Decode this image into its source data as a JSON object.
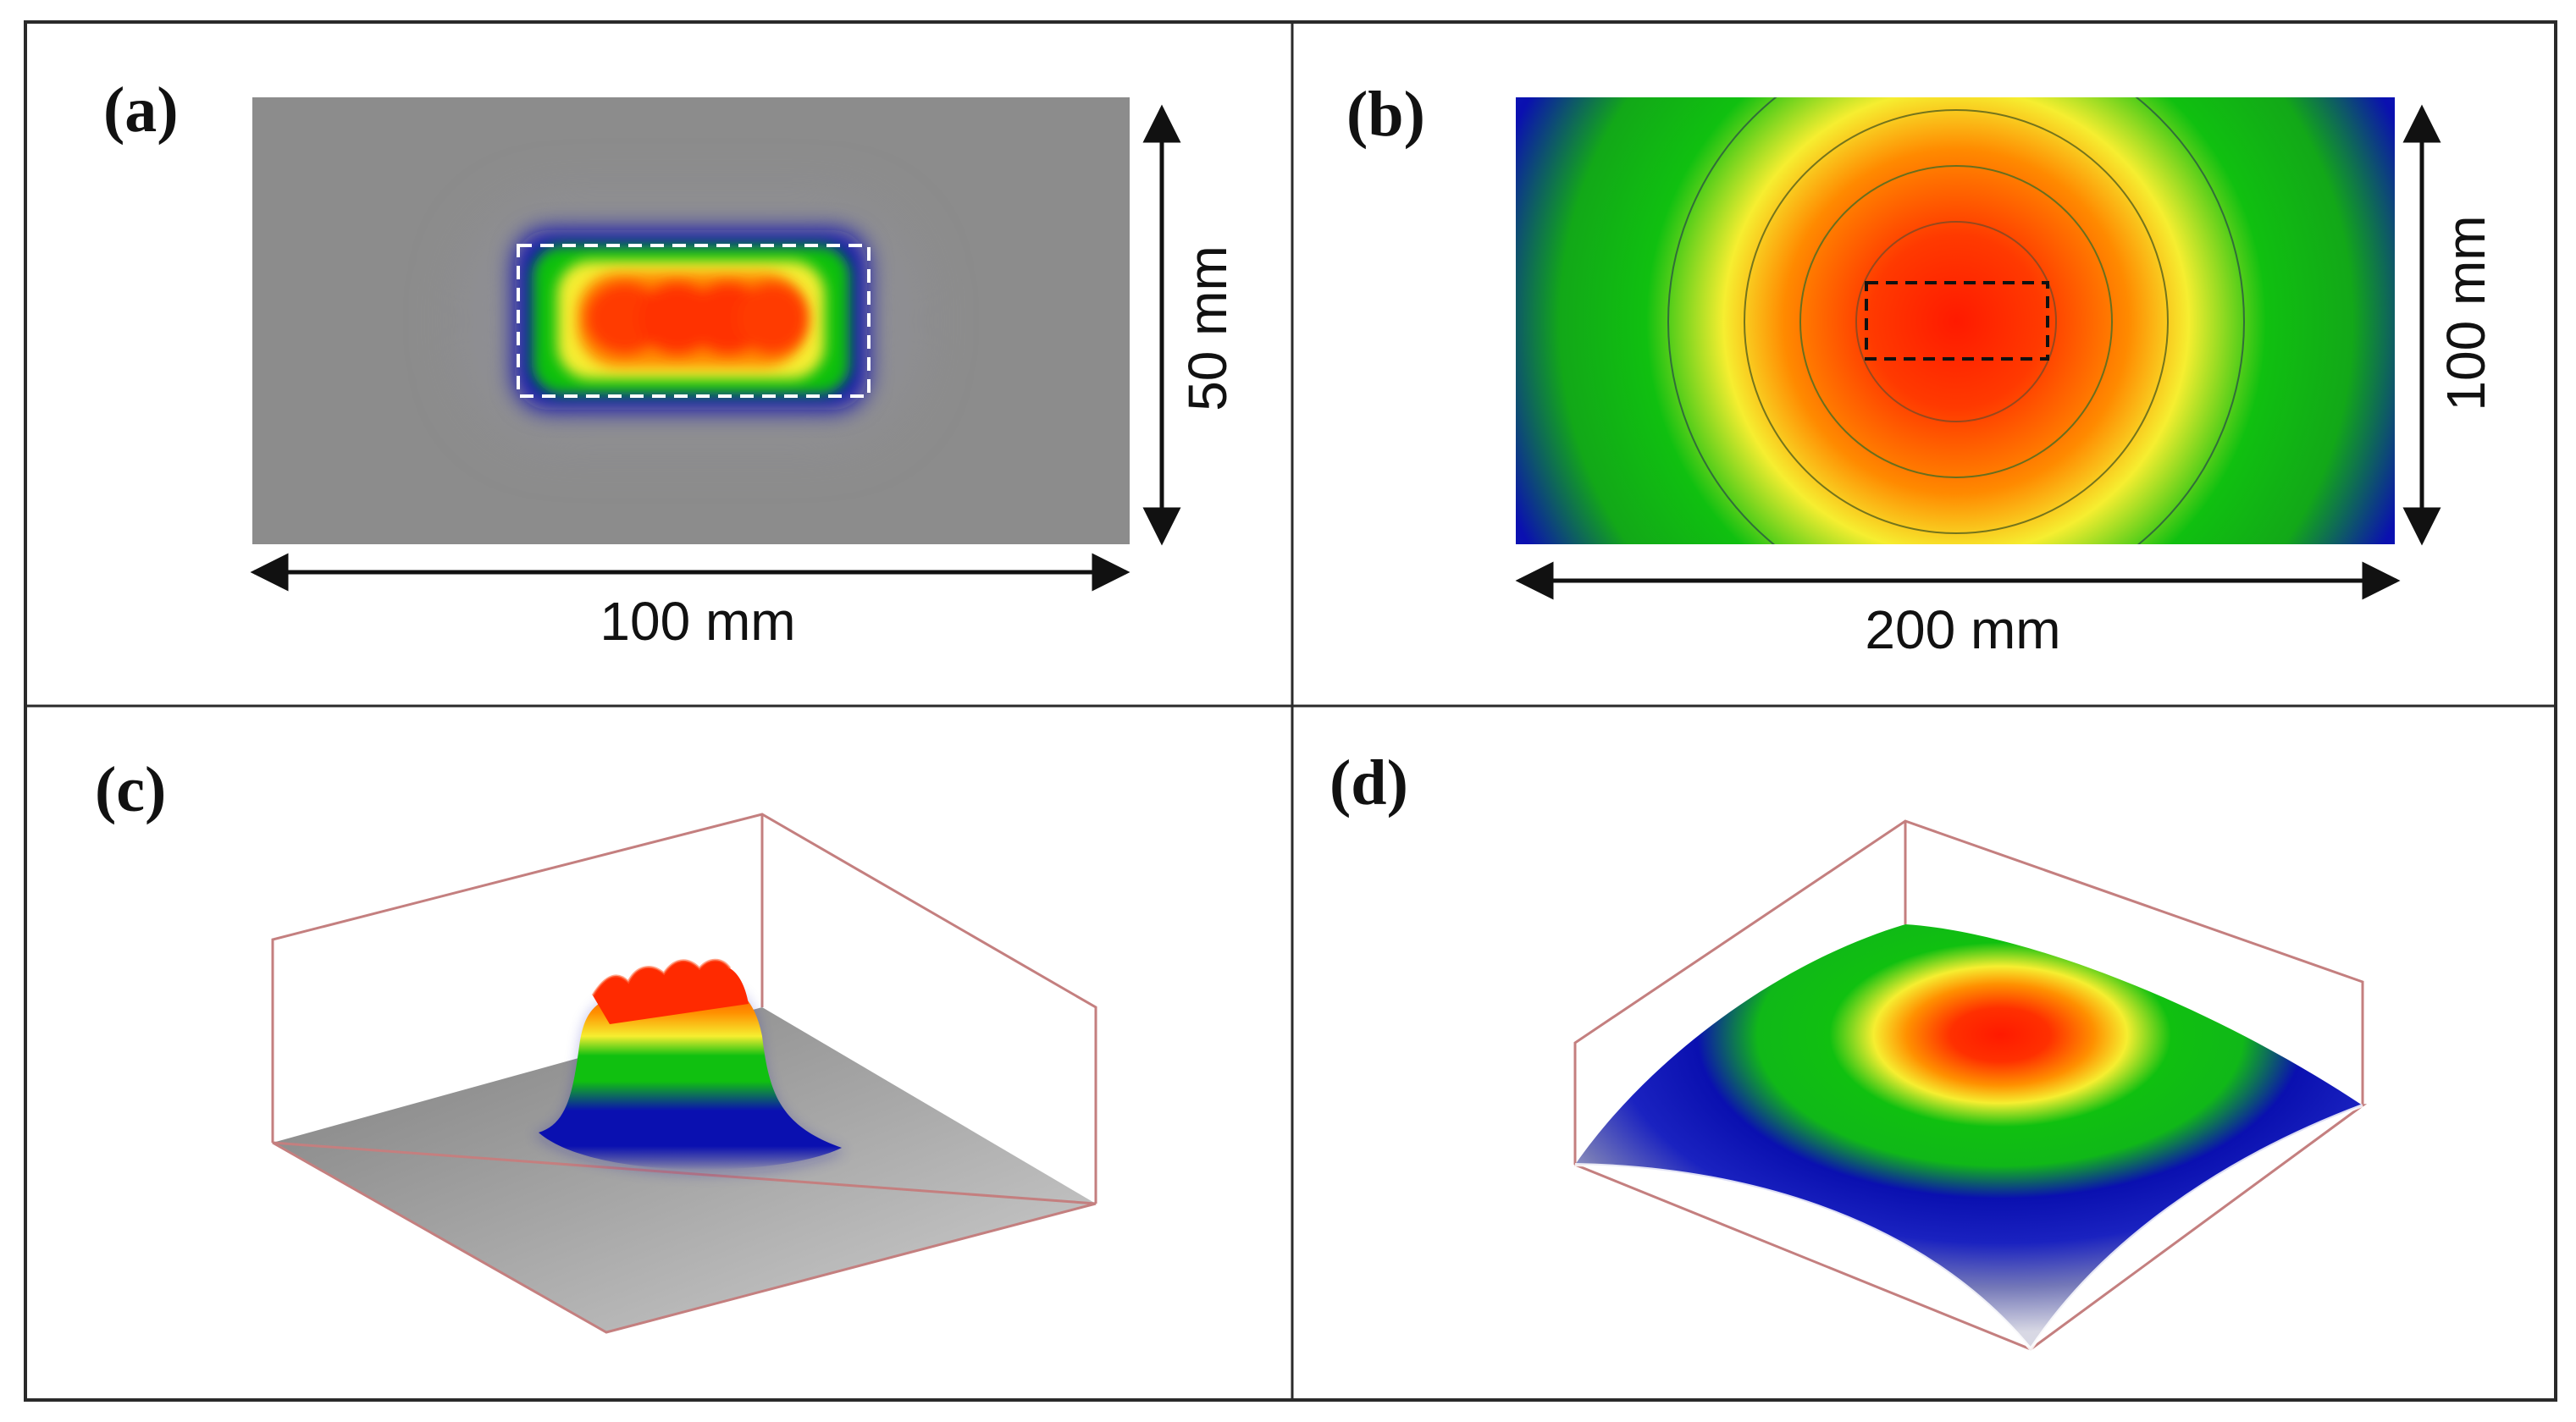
{
  "figure": {
    "panels": [
      {
        "id": "a",
        "label": "(a)",
        "width_label": "100 mm",
        "height_label": "50 mm",
        "view": "top"
      },
      {
        "id": "b",
        "label": "(b)",
        "width_label": "200 mm",
        "height_label": "100 mm",
        "view": "top"
      },
      {
        "id": "c",
        "label": "(c)",
        "view": "3d"
      },
      {
        "id": "d",
        "label": "(d)",
        "view": "3d"
      }
    ]
  },
  "colors": {
    "border": "#2a2a2a",
    "background_gray": "#8c8c8c",
    "blue": "#0a10b0",
    "green": "#10c010",
    "yellow": "#f6ee30",
    "orange": "#ff8000",
    "red": "#ff2000",
    "box_line": "#c47f7f"
  }
}
